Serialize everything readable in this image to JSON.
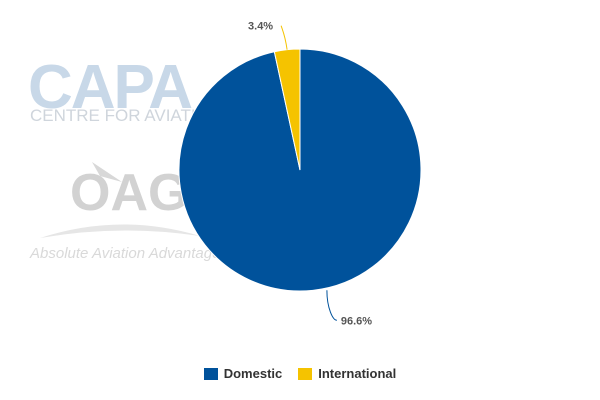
{
  "watermarks": {
    "capa_logo": "CAPA",
    "capa_subtitle": "CENTRE FOR AVIATION",
    "oag_logo": "OAG",
    "oag_tagline": "Absolute Aviation Advantage"
  },
  "chart_data": {
    "type": "pie",
    "title": "",
    "series": [
      {
        "name": "Domestic",
        "value": 96.6,
        "label": "96.6%",
        "color": "#00529b"
      },
      {
        "name": "International",
        "value": 3.4,
        "label": "3.4%",
        "color": "#f5c300"
      }
    ],
    "legend_position": "bottom"
  }
}
